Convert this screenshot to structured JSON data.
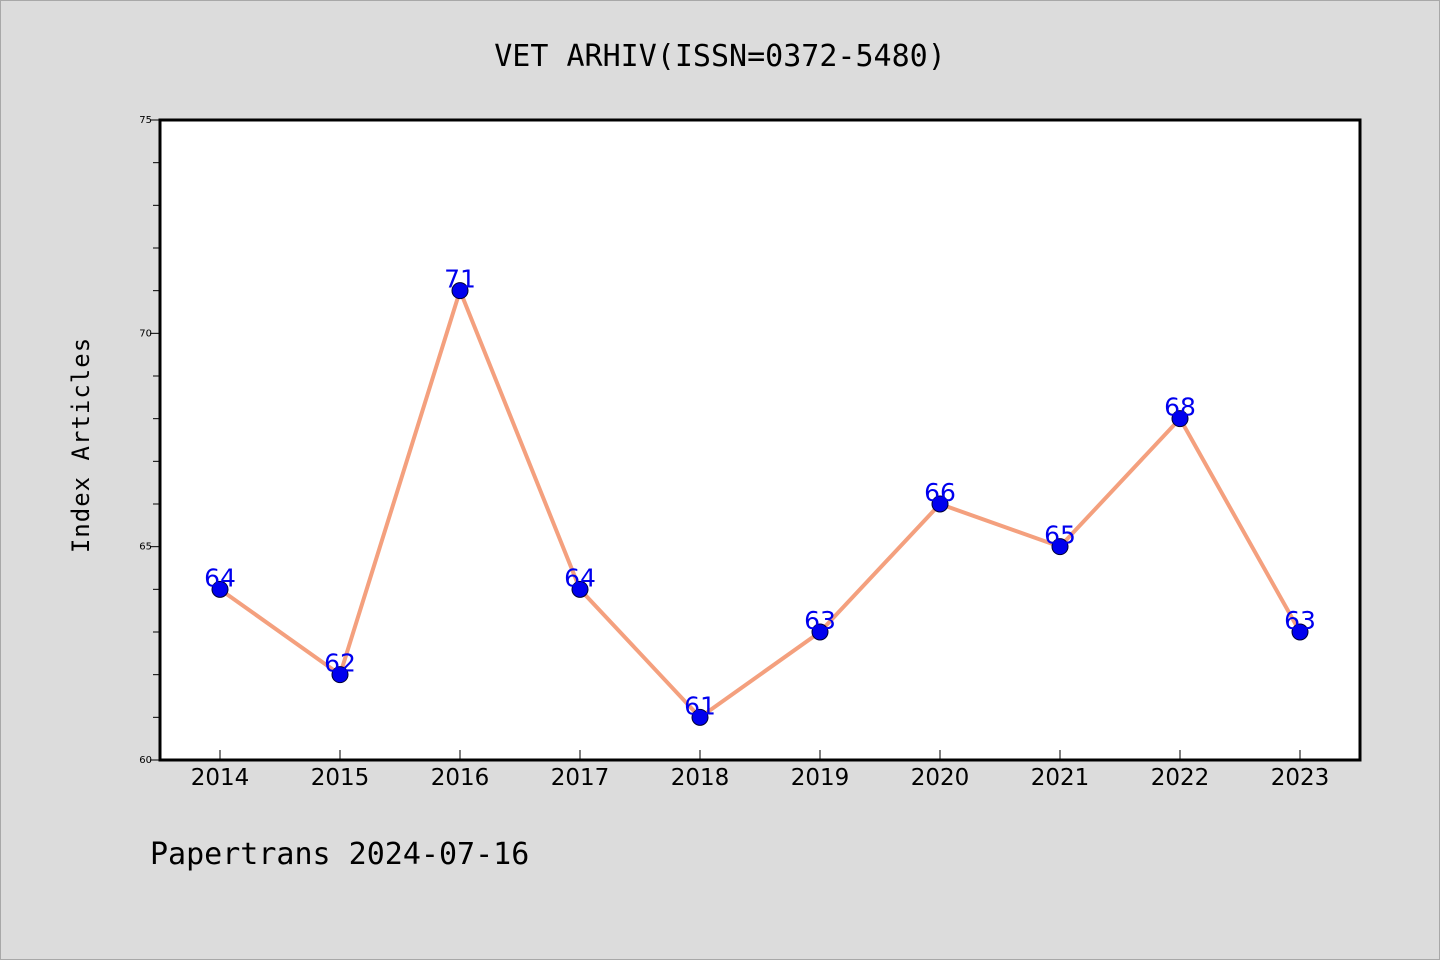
{
  "footer": "Papertrans 2024-07-16",
  "colors": {
    "background": "#dcdcdc",
    "plot_background": "#ffffff",
    "line": "#f4a07e",
    "marker": "#0000ee",
    "label": "#0000ee"
  },
  "chart_data": {
    "type": "line",
    "title": "VET ARHIV(ISSN=0372-5480)",
    "xlabel": "",
    "ylabel": "Index Articles",
    "categories": [
      "2014",
      "2015",
      "2016",
      "2017",
      "2018",
      "2019",
      "2020",
      "2021",
      "2022",
      "2023"
    ],
    "series": [
      {
        "values": [
          64,
          62,
          71,
          64,
          61,
          63,
          66,
          65,
          68,
          63
        ]
      }
    ],
    "ylim": [
      60,
      75
    ],
    "yticks": [
      60,
      65,
      70,
      75
    ],
    "yminor_step": 1,
    "grid": false,
    "data_labels": true,
    "markers": true
  }
}
